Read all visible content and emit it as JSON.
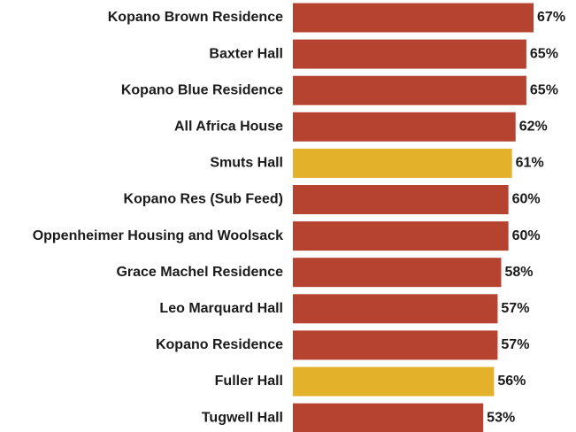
{
  "chart_data": {
    "type": "bar",
    "orientation": "horizontal",
    "categories": [
      "Kopano Brown Residence",
      "Baxter Hall",
      "Kopano Blue Residence",
      "All Africa House",
      "Smuts Hall",
      "Kopano Res (Sub Feed)",
      "Oppenheimer Housing and Woolsack",
      "Grace Machel Residence",
      "Leo Marquard Hall",
      "Kopano Residence",
      "Fuller Hall",
      "Tugwell Hall"
    ],
    "values": [
      67,
      65,
      65,
      62,
      61,
      60,
      60,
      58,
      57,
      57,
      56,
      53
    ],
    "value_labels": [
      "67%",
      "65%",
      "65%",
      "62%",
      "61%",
      "60%",
      "60%",
      "58%",
      "57%",
      "57%",
      "56%",
      "53%"
    ],
    "colors": [
      "#b5432f",
      "#b5432f",
      "#b5432f",
      "#b5432f",
      "#e3b12a",
      "#b5432f",
      "#b5432f",
      "#b5432f",
      "#b5432f",
      "#b5432f",
      "#e3b12a",
      "#b5432f"
    ]
  }
}
